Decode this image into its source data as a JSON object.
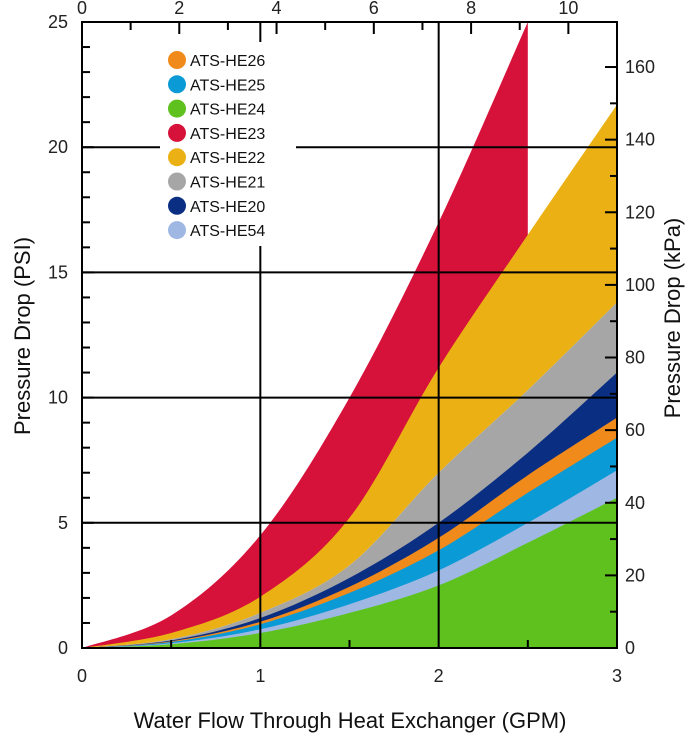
{
  "chart_data": {
    "type": "area",
    "x_label": "Water Flow Through Heat Exchanger (GPM)",
    "y_label_left": "Pressure Drop (PSI)",
    "y_label_right": "Pressure Drop (kPa)",
    "x_range": [
      0,
      3
    ],
    "y_range_left": [
      0,
      25
    ],
    "y_range_right_kpa": [
      0,
      172.4
    ],
    "x_ticks": [
      "0",
      "1",
      "2",
      "3"
    ],
    "x_ticks_top": [
      "0",
      "2",
      "4",
      "6",
      "8",
      "10"
    ],
    "y_ticks_left": [
      "0",
      "5",
      "10",
      "15",
      "20",
      "25"
    ],
    "y_ticks_right": [
      "0",
      "20",
      "40",
      "60",
      "80",
      "100",
      "120",
      "140",
      "160"
    ],
    "grid": {
      "x_lines_at": [
        1,
        2
      ],
      "y_lines_at": [
        5,
        10,
        15,
        20
      ]
    },
    "legend_position": "top-left",
    "series": [
      {
        "name": "ATS-HE23",
        "color": "#d6123a",
        "x": [
          0,
          0.5,
          1,
          1.5,
          2,
          2.5
        ],
        "upper": [
          0,
          1.3,
          4.5,
          10.0,
          17.0,
          25.0
        ],
        "lower": [
          0,
          0.55,
          2.0,
          4.8,
          9.8,
          16.0
        ]
      },
      {
        "name": "ATS-HE22",
        "color": "#ebb114",
        "x": [
          0,
          0.5,
          1,
          1.5,
          2,
          2.5,
          3
        ],
        "upper": [
          0,
          0.6,
          2.05,
          5.2,
          11.2,
          16.5,
          21.7
        ],
        "lower": [
          0,
          0.35,
          1.4,
          3.3,
          7.0,
          10.3,
          13.8
        ]
      },
      {
        "name": "ATS-HE21",
        "color": "#a6a6a6",
        "x": [
          0,
          0.5,
          1,
          1.5,
          2,
          2.5,
          3
        ],
        "upper": [
          0,
          0.35,
          1.4,
          3.3,
          7.0,
          10.3,
          13.8
        ],
        "lower": [
          0,
          0.27,
          1.05,
          2.45,
          4.4,
          6.9,
          10.0
        ]
      },
      {
        "name": "ATS-HE20",
        "color": "#0a2f82",
        "x": [
          0,
          0.5,
          1,
          1.5,
          2,
          2.5,
          3
        ],
        "upper": [
          0,
          0.3,
          1.2,
          2.8,
          5.0,
          7.8,
          11.0
        ],
        "lower": [
          0,
          0.24,
          0.95,
          2.2,
          3.9,
          6.2,
          9.0
        ]
      },
      {
        "name": "ATS-HE26",
        "color": "#f08a1a",
        "x": [
          0,
          0.5,
          1,
          1.5,
          2,
          2.5,
          3
        ],
        "upper": [
          0,
          0.27,
          1.05,
          2.45,
          4.4,
          6.9,
          9.2
        ],
        "lower": [
          0,
          0.22,
          0.85,
          1.95,
          3.5,
          5.6,
          8.2
        ]
      },
      {
        "name": "ATS-HE25",
        "color": "#0a9ad6",
        "x": [
          0,
          0.5,
          1,
          1.5,
          2,
          2.5,
          3
        ],
        "upper": [
          0,
          0.24,
          0.95,
          2.2,
          3.9,
          6.2,
          8.4
        ],
        "lower": [
          0,
          0.15,
          0.6,
          1.4,
          2.5,
          4.2,
          6.0
        ]
      },
      {
        "name": "ATS-HE54",
        "color": "#9fb8e3",
        "x": [
          0,
          0.5,
          1,
          1.5,
          2,
          2.5,
          3
        ],
        "upper": [
          0,
          0.19,
          0.75,
          1.75,
          3.1,
          5.0,
          7.1
        ],
        "lower": [
          0,
          0.15,
          0.6,
          1.4,
          2.5,
          4.2,
          6.0
        ]
      },
      {
        "name": "ATS-HE24",
        "color": "#5ec11e",
        "x": [
          0,
          0.5,
          1,
          1.5,
          2,
          2.5,
          3
        ],
        "upper": [
          0,
          0.15,
          0.6,
          1.4,
          2.5,
          4.2,
          6.0
        ],
        "lower": [
          0,
          0,
          0,
          0,
          0,
          0,
          0
        ]
      }
    ],
    "legend_order": [
      "ATS-HE26",
      "ATS-HE25",
      "ATS-HE24",
      "ATS-HE23",
      "ATS-HE22",
      "ATS-HE21",
      "ATS-HE20",
      "ATS-HE54"
    ]
  }
}
